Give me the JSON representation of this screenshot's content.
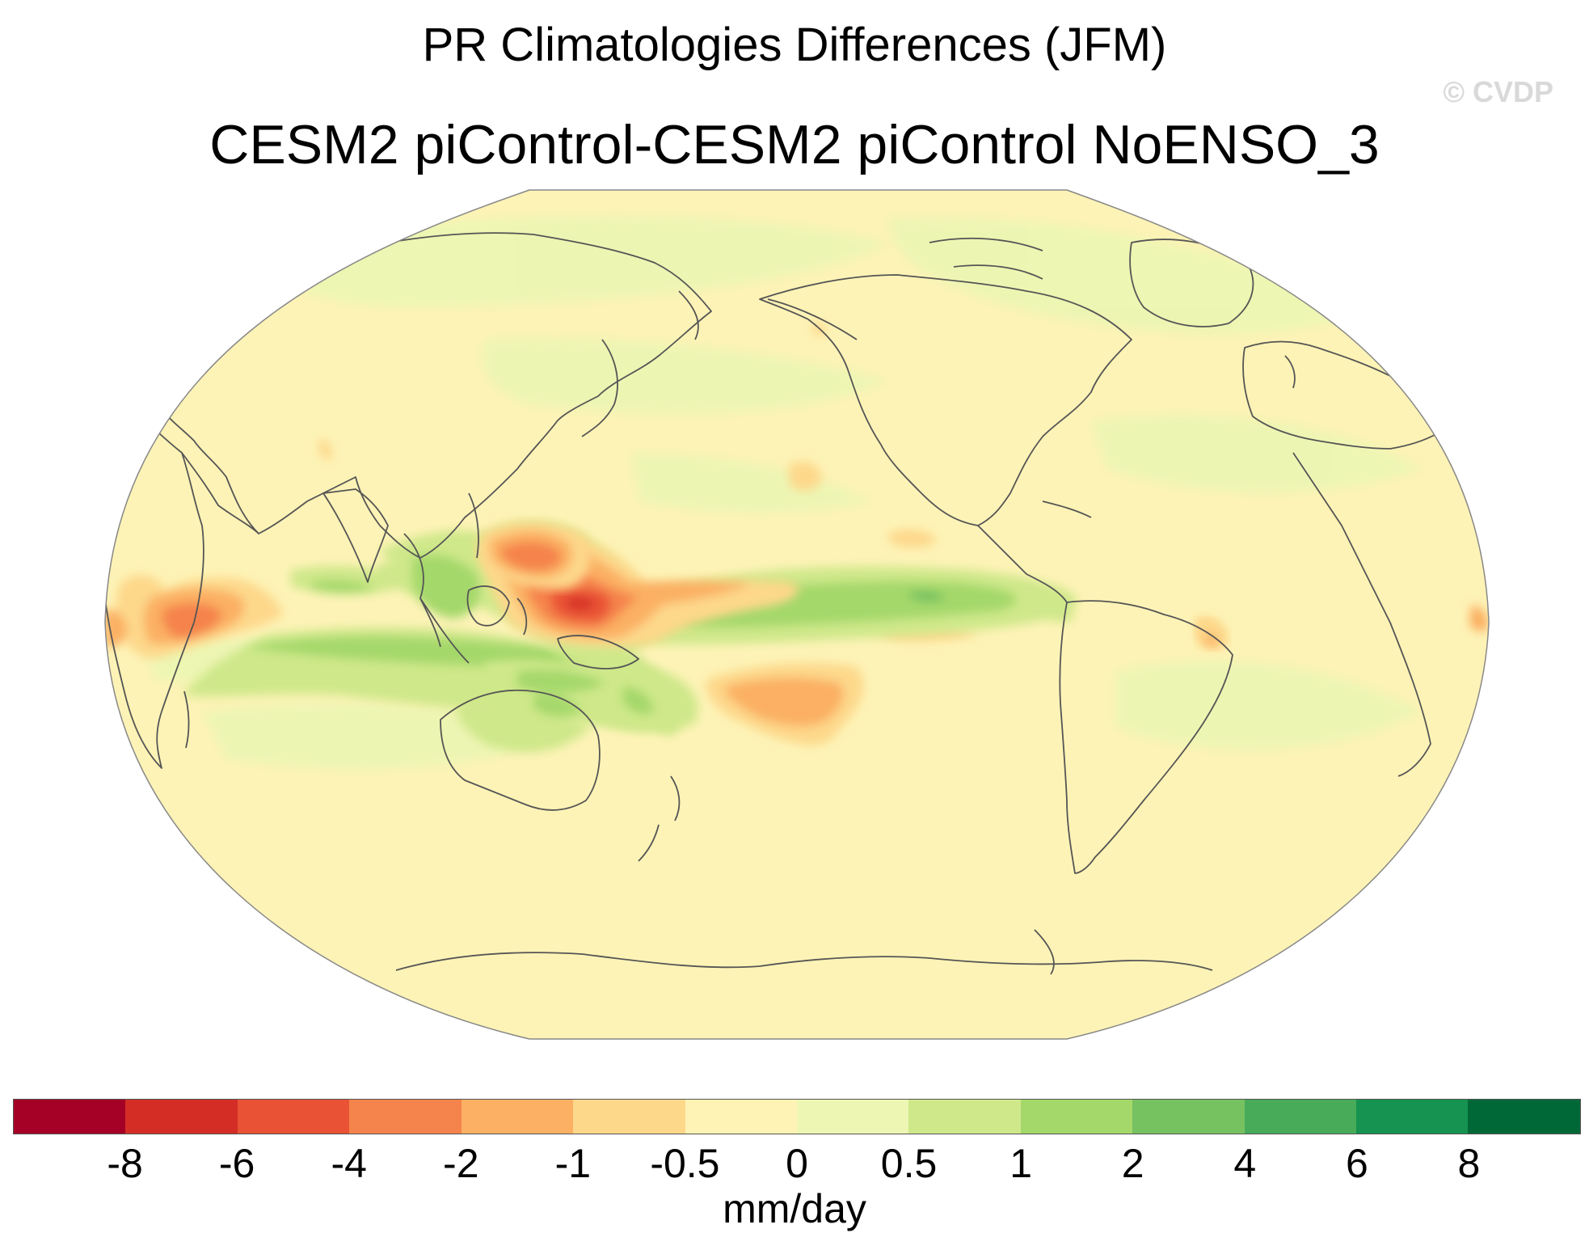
{
  "title": "PR Climatologies Differences (JFM)",
  "subtitle": "CESM2 piControl-CESM2 piControl NoENSO_3",
  "watermark": "© CVDP",
  "map": {
    "projection": "Robinson",
    "ocean_color": "#fdf3b6",
    "land_outline_color": "#555555",
    "features": [
      {
        "name": "western-pacific-dry-anomaly",
        "level": "-6",
        "color": "#e2402e"
      },
      {
        "name": "north-philippines-dry-anomaly",
        "level": "-4",
        "color": "#f47a4e"
      },
      {
        "name": "western-indian-ocean-dry-anomaly",
        "level": "-4",
        "color": "#f47a4e"
      },
      {
        "name": "south-central-pacific-dry-anomaly",
        "level": "-2",
        "color": "#fbb267"
      },
      {
        "name": "equatorial-pacific-wet-band",
        "level": "2",
        "color": "#a8d66a"
      },
      {
        "name": "indian-ocean-wet-band",
        "level": "2",
        "color": "#a8d66a"
      },
      {
        "name": "maritime-continent-wet-region",
        "level": "1",
        "color": "#cfe68a"
      },
      {
        "name": "northeast-brazil-dry-spot",
        "level": "-1",
        "color": "#fdd589"
      }
    ]
  },
  "colorbar": {
    "colors": [
      "#a50026",
      "#d42d26",
      "#e95235",
      "#f5834c",
      "#fbb064",
      "#fdd88b",
      "#fef3b4",
      "#edf6b3",
      "#cfe88a",
      "#a4d86a",
      "#76c160",
      "#47ab59",
      "#169350",
      "#006837"
    ],
    "tick_labels": [
      "-8",
      "-6",
      "-4",
      "-2",
      "-1",
      "-0.5",
      "0",
      "0.5",
      "1",
      "2",
      "4",
      "6",
      "8"
    ],
    "units": "mm/day"
  }
}
